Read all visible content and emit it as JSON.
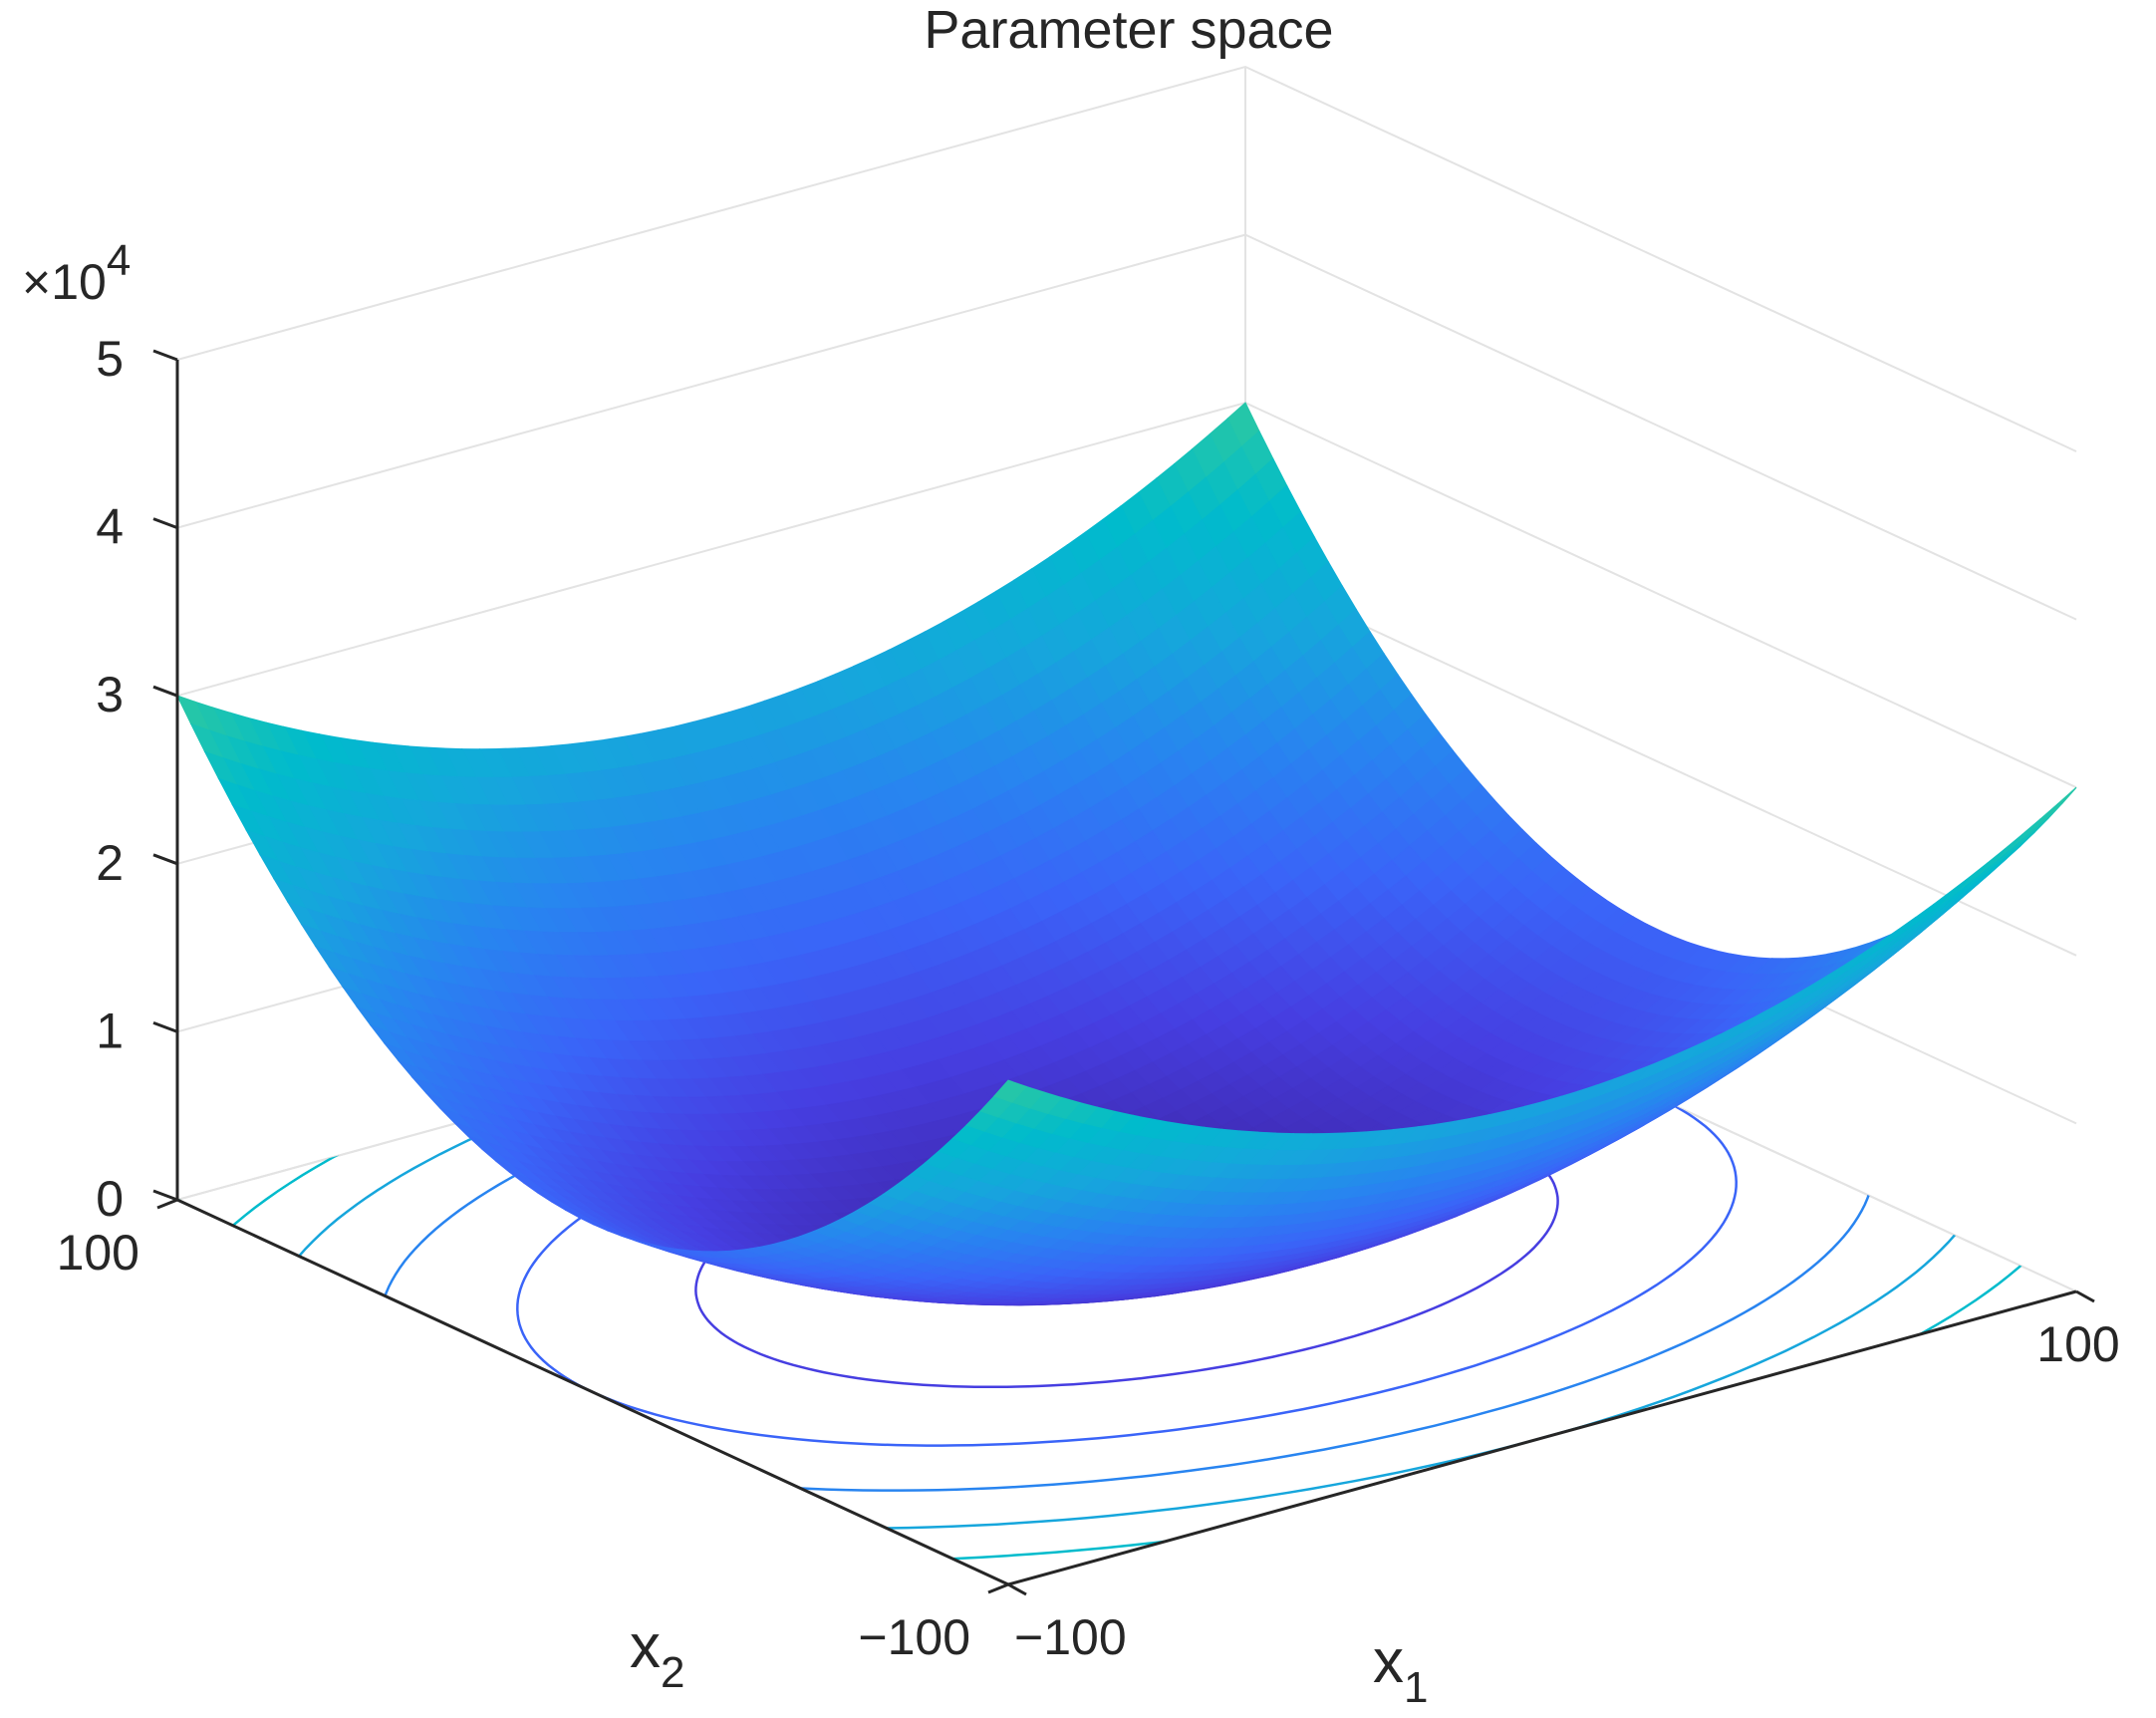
{
  "chart_data": {
    "type": "surface",
    "title": "Parameter space",
    "function": "z = x1^2 + 2 * x2^2",
    "xlabel": "x",
    "xlabel_sub": "1",
    "ylabel": "x",
    "ylabel_sub": "2",
    "zlabel": "",
    "x_range": [
      -100,
      100
    ],
    "y_range": [
      -100,
      100
    ],
    "zlim": [
      0,
      50000
    ],
    "z_multiplier_base": "×10",
    "z_multiplier_exp": "4",
    "x_ticks": [
      {
        "value": -100,
        "label": "−100"
      },
      {
        "value": 100,
        "label": "100"
      }
    ],
    "y_ticks": [
      {
        "value": -100,
        "label": "−100"
      },
      {
        "value": 100,
        "label": "100"
      }
    ],
    "z_ticks": [
      {
        "value": 0,
        "label": "0"
      },
      {
        "value": 10000,
        "label": "1"
      },
      {
        "value": 20000,
        "label": "2"
      },
      {
        "value": 30000,
        "label": "3"
      },
      {
        "value": 40000,
        "label": "4"
      },
      {
        "value": 50000,
        "label": "5"
      }
    ],
    "contour_levels": [
      5000,
      10000,
      15000,
      20000,
      25000,
      30000,
      35000,
      40000,
      45000
    ],
    "colormap": "parula",
    "grid": true
  }
}
